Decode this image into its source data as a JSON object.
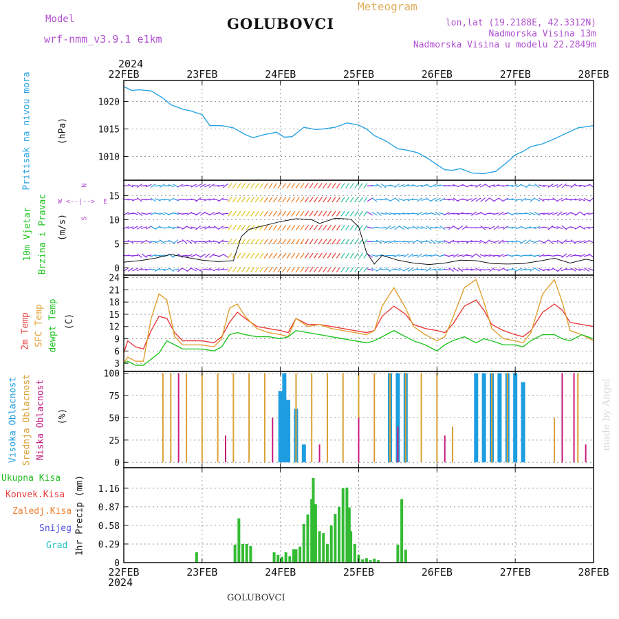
{
  "header": {
    "model_label": "Model",
    "model_name": "wrf-nmm_v3.9.1  e1km",
    "station": "GOLUBOVCI",
    "meteogram_label": "Meteogram",
    "lonlat": "lon,lat (19.2188E, 42.3312N)",
    "elevation": "Nadmorska Visina 13m",
    "model_elevation": "Nadmorska Visina u modelu 22.2849m",
    "credit": "made by Angel",
    "footer_station": "GOLUBOVCI",
    "year_top": "2024",
    "year_bottom": "2024"
  },
  "colors": {
    "pressure": "#29a3e3",
    "wind_label": "#22c422",
    "t2m": "#e83c3c",
    "sfc": "#e0a030",
    "dewpt": "#22c422",
    "high_cloud": "#1e9de0",
    "mid_cloud": "#d9a033",
    "low_cloud": "#c8197f",
    "precip_total": "#33bb33",
    "precip_conv": "#e83c3c",
    "precip_frz": "#f08030",
    "snow": "#5050e0",
    "hail": "#20c0c0",
    "purple_text": "#b050d0"
  },
  "chart_data": [
    {
      "type": "line",
      "panel": "pressure",
      "ylabel_name": "Pritisak na nivou mora",
      "ylabel_unit": "(hPa)",
      "x_ticks": [
        "22FEB",
        "23FEB",
        "24FEB",
        "25FEB",
        "26FEB",
        "27FEB",
        "28FEB"
      ],
      "ylim": [
        1005.7,
        1023.8
      ],
      "y_ticks": [
        1010,
        1015,
        1020
      ],
      "grid": true,
      "series": [
        {
          "x_days": [
            0.0,
            0.1,
            0.2,
            0.35,
            0.5,
            0.6,
            0.75,
            0.85,
            1.0,
            1.1,
            1.25,
            1.4,
            1.55,
            1.65,
            1.8,
            1.95,
            2.05,
            2.15,
            2.3,
            2.45,
            2.55,
            2.7,
            2.85,
            3.0,
            3.1,
            3.2,
            3.35,
            3.5,
            3.6,
            3.75,
            3.9,
            4.0,
            4.1,
            4.2,
            4.3,
            4.45,
            4.6,
            4.75,
            4.9,
            5.0,
            5.1,
            5.2,
            5.35,
            5.5,
            5.65,
            5.8,
            5.9,
            6.0
          ],
          "values": [
            1022.7,
            1022.0,
            1022.1,
            1021.9,
            1020.6,
            1019.4,
            1018.6,
            1018.3,
            1017.6,
            1015.6,
            1015.6,
            1015.2,
            1014.0,
            1013.4,
            1014.0,
            1014.4,
            1013.5,
            1013.6,
            1015.3,
            1014.9,
            1015.0,
            1015.3,
            1016.1,
            1015.7,
            1015.0,
            1013.8,
            1012.8,
            1011.4,
            1011.2,
            1010.7,
            1009.5,
            1008.5,
            1007.6,
            1007.5,
            1007.8,
            1007.0,
            1006.9,
            1007.3,
            1009.0,
            1010.3,
            1010.9,
            1011.8,
            1012.3,
            1013.2,
            1014.2,
            1015.2,
            1015.4,
            1015.6
          ]
        }
      ]
    },
    {
      "type": "line",
      "panel": "wind",
      "ylabel_name": "10m Vjetar",
      "ylabel_name2": "Brzina i Pravac",
      "ylabel_unit": "(m/s)",
      "compass": {
        "north": "N",
        "south": "S",
        "east": "E",
        "west": "W"
      },
      "ylim": [
        -1.5,
        18.2
      ],
      "y_ticks": [
        0,
        5,
        10,
        15
      ],
      "grid": true,
      "series": [
        {
          "name": "wind speed",
          "x_days": [
            0.0,
            0.2,
            0.4,
            0.6,
            0.8,
            1.0,
            1.2,
            1.4,
            1.5,
            1.6,
            1.8,
            2.0,
            2.2,
            2.4,
            2.5,
            2.7,
            2.9,
            3.0,
            3.1,
            3.2,
            3.3,
            3.5,
            3.7,
            3.9,
            4.1,
            4.3,
            4.5,
            4.7,
            4.9,
            5.1,
            5.3,
            5.5,
            5.7,
            5.9,
            6.0
          ],
          "values": [
            1.2,
            1.5,
            2.0,
            2.8,
            2.2,
            1.6,
            1.3,
            1.5,
            6.5,
            8.0,
            8.8,
            9.6,
            10.2,
            10.0,
            9.2,
            10.3,
            10.1,
            8.5,
            3.2,
            0.8,
            2.6,
            1.6,
            1.0,
            0.7,
            1.0,
            1.6,
            1.5,
            0.9,
            0.8,
            0.9,
            1.4,
            2.0,
            1.0,
            1.8,
            1.5
          ]
        }
      ]
    },
    {
      "type": "line",
      "panel": "temperature",
      "ylabel_t2m": "2m Temp",
      "ylabel_sfc": "SFC Temp",
      "ylabel_dew": "dewpt Temp",
      "ylabel_unit": "(C)",
      "ylim": [
        1.0,
        24.6
      ],
      "y_ticks": [
        3,
        6,
        9,
        12,
        15,
        18,
        21,
        24
      ],
      "grid": true,
      "series": [
        {
          "name": "2m Temp",
          "x_days": [
            0.0,
            0.05,
            0.15,
            0.25,
            0.35,
            0.45,
            0.55,
            0.65,
            0.75,
            0.85,
            1.0,
            1.15,
            1.25,
            1.35,
            1.45,
            1.55,
            1.7,
            1.85,
            2.0,
            2.1,
            2.2,
            2.35,
            2.5,
            2.65,
            2.8,
            2.95,
            3.1,
            3.2,
            3.3,
            3.45,
            3.6,
            3.7,
            3.85,
            4.0,
            4.1,
            4.2,
            4.35,
            4.5,
            4.6,
            4.7,
            4.85,
            5.0,
            5.1,
            5.2,
            5.35,
            5.5,
            5.6,
            5.7,
            5.85,
            6.0
          ],
          "values": [
            5.5,
            8.5,
            7.0,
            6.5,
            11.0,
            14.5,
            14.0,
            10.5,
            8.5,
            8.5,
            8.5,
            8.0,
            9.5,
            13.0,
            15.5,
            14.0,
            12.0,
            11.5,
            11.0,
            10.5,
            14.0,
            12.5,
            12.5,
            12.0,
            11.5,
            11.0,
            10.5,
            11.0,
            14.5,
            17.0,
            15.0,
            12.5,
            11.5,
            11.0,
            10.5,
            12.5,
            17.0,
            18.5,
            16.0,
            12.5,
            11.0,
            10.0,
            9.5,
            11.0,
            15.5,
            17.5,
            16.0,
            13.0,
            12.5,
            12.0
          ]
        },
        {
          "name": "SFC Temp",
          "x_days": [
            0.0,
            0.05,
            0.15,
            0.25,
            0.35,
            0.45,
            0.55,
            0.65,
            0.75,
            0.85,
            1.0,
            1.15,
            1.25,
            1.35,
            1.45,
            1.55,
            1.7,
            1.85,
            2.0,
            2.1,
            2.2,
            2.35,
            2.5,
            2.65,
            2.8,
            2.95,
            3.1,
            3.2,
            3.3,
            3.45,
            3.6,
            3.7,
            3.85,
            4.0,
            4.1,
            4.2,
            4.35,
            4.5,
            4.6,
            4.7,
            4.85,
            5.0,
            5.1,
            5.2,
            5.35,
            5.5,
            5.6,
            5.7,
            5.85,
            6.0
          ],
          "values": [
            3.0,
            4.5,
            3.5,
            3.5,
            14.0,
            20.0,
            18.5,
            9.5,
            7.5,
            7.5,
            7.5,
            7.0,
            9.0,
            16.5,
            17.5,
            14.5,
            11.5,
            10.5,
            10.0,
            9.5,
            14.0,
            12.0,
            12.5,
            11.5,
            11.0,
            10.5,
            10.0,
            11.0,
            17.0,
            21.5,
            16.5,
            12.0,
            10.0,
            8.5,
            9.5,
            14.0,
            21.5,
            23.5,
            18.0,
            11.5,
            9.0,
            8.5,
            8.0,
            10.5,
            20.0,
            23.5,
            18.0,
            11.0,
            10.0,
            8.5
          ]
        },
        {
          "name": "dewpt Temp",
          "x_days": [
            0.0,
            0.05,
            0.15,
            0.25,
            0.35,
            0.45,
            0.55,
            0.65,
            0.75,
            0.85,
            1.0,
            1.15,
            1.25,
            1.35,
            1.45,
            1.55,
            1.7,
            1.85,
            2.0,
            2.1,
            2.2,
            2.35,
            2.5,
            2.65,
            2.8,
            2.95,
            3.1,
            3.2,
            3.3,
            3.45,
            3.6,
            3.7,
            3.85,
            4.0,
            4.1,
            4.2,
            4.35,
            4.5,
            4.6,
            4.7,
            4.85,
            5.0,
            5.1,
            5.2,
            5.35,
            5.5,
            5.6,
            5.7,
            5.85,
            6.0
          ],
          "values": [
            3.0,
            3.5,
            2.5,
            2.5,
            4.0,
            5.5,
            8.5,
            7.5,
            6.5,
            6.5,
            6.5,
            6.0,
            7.0,
            10.0,
            10.5,
            10.0,
            9.5,
            9.5,
            9.0,
            9.5,
            11.0,
            10.5,
            10.0,
            9.5,
            9.0,
            8.5,
            8.0,
            8.5,
            9.5,
            11.0,
            9.5,
            8.5,
            7.5,
            6.0,
            7.5,
            8.5,
            9.5,
            8.0,
            9.0,
            8.5,
            7.5,
            7.5,
            7.0,
            8.5,
            10.0,
            10.0,
            9.0,
            8.5,
            10.0,
            9.0
          ]
        }
      ]
    },
    {
      "type": "bar",
      "panel": "cloud",
      "ylabel_high": "Visoka Oblacnost",
      "ylabel_mid": "Srednja Oblacnost",
      "ylabel_low": "Niska  Oblacnost",
      "ylabel_unit": "(%)",
      "ylim": [
        -6,
        102
      ],
      "y_ticks": [
        0,
        25,
        50,
        75,
        100
      ],
      "grid": true,
      "series": [
        {
          "name": "Visoka Oblacnost",
          "x_days": [
            2.0,
            2.05,
            2.1,
            2.2,
            2.3,
            3.4,
            3.5,
            3.6,
            4.5,
            4.6,
            4.7,
            4.8,
            4.9,
            5.0,
            5.1
          ],
          "values": [
            80,
            100,
            70,
            60,
            20,
            100,
            100,
            100,
            100,
            100,
            100,
            100,
            100,
            100,
            90
          ]
        },
        {
          "name": "Srednja Oblacnost",
          "x_days": [
            0.5,
            0.6,
            0.8,
            1.0,
            1.2,
            1.4,
            1.6,
            1.8,
            2.2,
            2.4,
            2.6,
            2.8,
            3.0,
            3.2,
            3.4,
            3.6,
            3.8,
            4.0,
            4.2,
            4.7,
            4.9,
            5.5,
            5.6,
            5.8
          ],
          "values": [
            100,
            100,
            100,
            100,
            100,
            100,
            100,
            100,
            100,
            100,
            100,
            100,
            100,
            100,
            100,
            100,
            100,
            100,
            40,
            100,
            100,
            50,
            100,
            100
          ]
        },
        {
          "name": "Niska  Oblacnost",
          "x_days": [
            0.7,
            1.3,
            1.9,
            2.5,
            3.0,
            3.5,
            4.1,
            5.6,
            5.75,
            5.9
          ],
          "values": [
            100,
            30,
            50,
            20,
            50,
            40,
            30,
            100,
            100,
            20
          ]
        }
      ]
    },
    {
      "type": "bar",
      "panel": "precip",
      "ylabel_unit": "1hr Precip (mm)",
      "legend": [
        "Ukupna  Kisa",
        "Konvek.Kisa",
        "Zaledj.Kisa",
        "Snijeg",
        "Grad"
      ],
      "ylim": [
        0,
        1.48
      ],
      "y_ticks": [
        0,
        0.29,
        0.58,
        0.87,
        1.16
      ],
      "y_tick_labels": [
        "0",
        "0.29",
        "0.58",
        "0.87",
        "1.16"
      ],
      "grid": true,
      "series": [
        {
          "name": "Ukupna  Kisa",
          "x_days": [
            0.93,
            1.42,
            1.47,
            1.52,
            1.57,
            1.62,
            1.92,
            1.97,
            2.02,
            2.07,
            2.12,
            2.17,
            2.2,
            2.25,
            2.3,
            2.35,
            2.4,
            2.42,
            2.45,
            2.5,
            2.55,
            2.6,
            2.65,
            2.7,
            2.75,
            2.8,
            2.85,
            2.88,
            2.9,
            2.95,
            3.0,
            3.05,
            3.1,
            3.15,
            3.2,
            3.25,
            3.5,
            3.55,
            3.6
          ],
          "values": [
            0.16,
            0.28,
            0.69,
            0.29,
            0.29,
            0.26,
            0.16,
            0.12,
            0.09,
            0.16,
            0.1,
            0.21,
            0.21,
            0.25,
            0.6,
            0.75,
            0.99,
            1.32,
            0.91,
            0.49,
            0.46,
            0.29,
            0.58,
            0.76,
            0.87,
            1.16,
            1.17,
            0.86,
            0.49,
            0.29,
            0.12,
            0.05,
            0.07,
            0.04,
            0.06,
            0.04,
            0.28,
            0.99,
            0.2
          ]
        }
      ]
    }
  ]
}
